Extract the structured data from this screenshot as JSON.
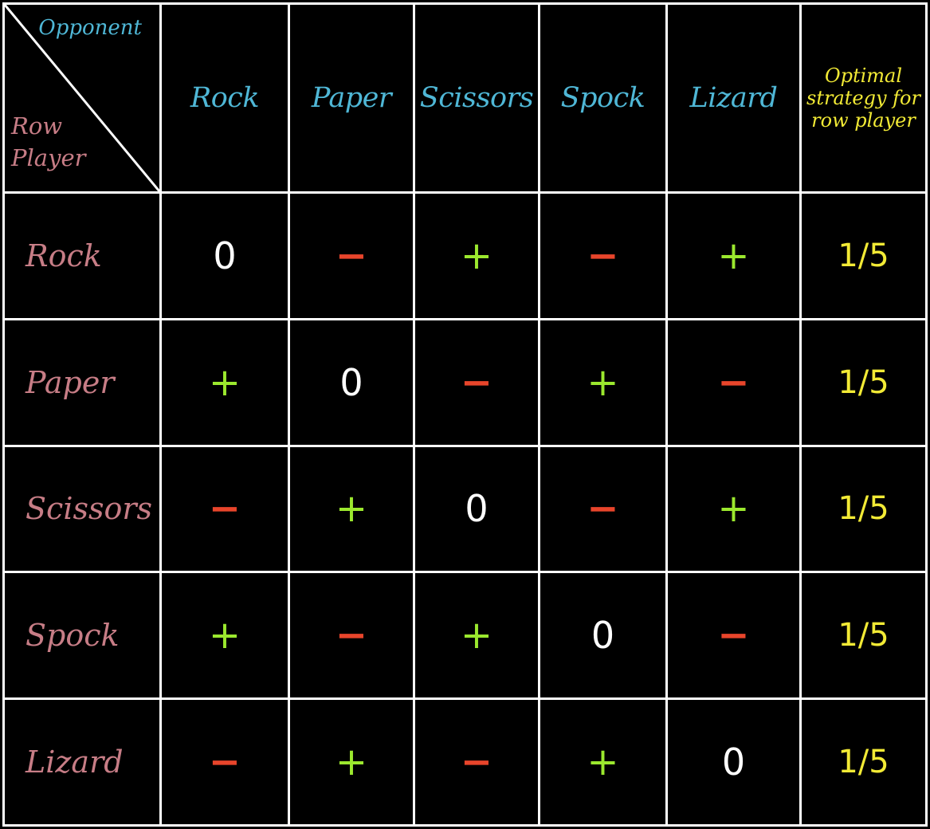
{
  "corner": {
    "opponent_label": "Opponent",
    "row_player_label": "Row Player"
  },
  "columns": [
    "Rock",
    "Paper",
    "Scissors",
    "Spock",
    "Lizard"
  ],
  "optimal_header": "Optimal strategy for row player",
  "rows": [
    {
      "label": "Rock",
      "cells": [
        "0",
        "−",
        "+",
        "−",
        "+"
      ],
      "prob": "1/5"
    },
    {
      "label": "Paper",
      "cells": [
        "+",
        "0",
        "−",
        "+",
        "−"
      ],
      "prob": "1/5"
    },
    {
      "label": "Scissors",
      "cells": [
        "−",
        "+",
        "0",
        "−",
        "+"
      ],
      "prob": "1/5"
    },
    {
      "label": "Spock",
      "cells": [
        "+",
        "−",
        "+",
        "0",
        "−"
      ],
      "prob": "1/5"
    },
    {
      "label": "Lizard",
      "cells": [
        "−",
        "+",
        "−",
        "+",
        "0"
      ],
      "prob": "1/5"
    }
  ],
  "colors": {
    "background": "#000000",
    "grid": "#ffffff",
    "opponent_headers": "#4fb7d6",
    "row_headers": "#c77d86",
    "strategy": "#f2ea35",
    "plus": "#9be82e",
    "minus": "#e8452b",
    "zero": "#ffffff"
  }
}
